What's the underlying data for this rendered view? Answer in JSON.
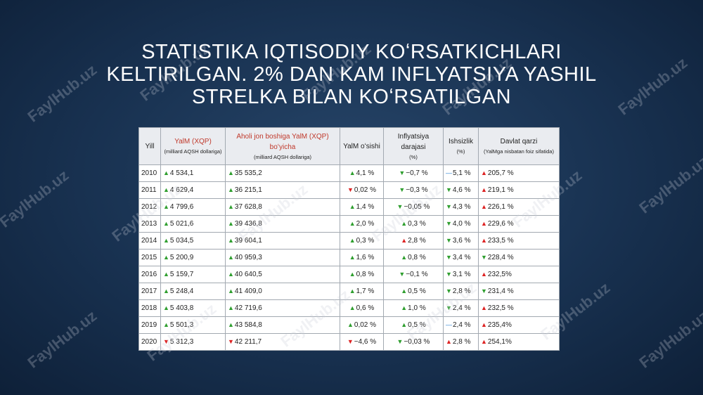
{
  "title": "STATISTIKA  IQTISODIY KOʻRSATKICHLARI KELTIRILGAN. 2% DAN KAM INFLYATSIYA YASHIL STRELKA BILAN KOʻRSATILGAN",
  "watermark": "FaylHub.uz",
  "table": {
    "header": [
      {
        "title": "Yill"
      },
      {
        "title": "YalM (XQP)",
        "note": "(milliard AQSH dollariga)",
        "color": "#c0392b"
      },
      {
        "title": "Aholi jon boshiga YalM (XQP) boʻyicha",
        "note": "(milliard AQSH dollariga)",
        "color": "#c0392b"
      },
      {
        "title": "YalM oʻsishi"
      },
      {
        "title": "Inflyatsiya darajasi",
        "note": "(%)"
      },
      {
        "title": "Ishsizlik",
        "note": "(%)"
      },
      {
        "title": "Davlat qarzi",
        "note": "(YalMga nisbatan foiz sifatida)"
      }
    ],
    "rows": [
      {
        "year": "2010",
        "cells": [
          {
            "arrow": "▲",
            "text": "4 534,1",
            "color": "#2e9e2e"
          },
          {
            "arrow": "▲",
            "text": "35 535,2",
            "color": "#2e9e2e"
          },
          {
            "arrow": "▲",
            "text": "4,1 %",
            "color": "#2e9e2e"
          },
          {
            "arrow": "▼",
            "text": "−0,7 %",
            "color": "#2e9e2e"
          },
          {
            "arrow": "—",
            "text": "5,1 %",
            "color": "#2a7fd4"
          },
          {
            "arrow": "▲",
            "text": "205,7 %",
            "color": "#d22"
          }
        ]
      },
      {
        "year": "2011",
        "cells": [
          {
            "arrow": "▲",
            "text": "4 629,4",
            "color": "#2e9e2e"
          },
          {
            "arrow": "▲",
            "text": "36 215,1",
            "color": "#2e9e2e"
          },
          {
            "arrow": "▼",
            "text": "0,02 %",
            "color": "#d22"
          },
          {
            "arrow": "▼",
            "text": "−0,3 %",
            "color": "#2e9e2e"
          },
          {
            "arrow": "▼",
            "text": "4,6 %",
            "color": "#2e9e2e"
          },
          {
            "arrow": "▲",
            "text": "219,1 %",
            "color": "#d22"
          }
        ]
      },
      {
        "year": "2012",
        "cells": [
          {
            "arrow": "▲",
            "text": "4 799,6",
            "color": "#2e9e2e"
          },
          {
            "arrow": "▲",
            "text": "37 628,8",
            "color": "#2e9e2e"
          },
          {
            "arrow": "▲",
            "text": "1,4 %",
            "color": "#2e9e2e"
          },
          {
            "arrow": "▼",
            "text": "−0,05 %",
            "color": "#2e9e2e"
          },
          {
            "arrow": "▼",
            "text": "4,3 %",
            "color": "#2e9e2e"
          },
          {
            "arrow": "▲",
            "text": "226,1 %",
            "color": "#d22"
          }
        ]
      },
      {
        "year": "2013",
        "cells": [
          {
            "arrow": "▲",
            "text": "5 021,6",
            "color": "#2e9e2e"
          },
          {
            "arrow": "▲",
            "text": "39 436,8",
            "color": "#2e9e2e"
          },
          {
            "arrow": "▲",
            "text": "2,0 %",
            "color": "#2e9e2e"
          },
          {
            "arrow": "▲",
            "text": "0,3 %",
            "color": "#2e9e2e"
          },
          {
            "arrow": "▼",
            "text": "4,0 %",
            "color": "#2e9e2e"
          },
          {
            "arrow": "▲",
            "text": "229,6 %",
            "color": "#d22"
          }
        ]
      },
      {
        "year": "2014",
        "cells": [
          {
            "arrow": "▲",
            "text": "5 034,5",
            "color": "#2e9e2e"
          },
          {
            "arrow": "▲",
            "text": "39 604,1",
            "color": "#2e9e2e"
          },
          {
            "arrow": "▲",
            "text": "0,3 %",
            "color": "#2e9e2e"
          },
          {
            "arrow": "▲",
            "text": "2,8 %",
            "color": "#d22"
          },
          {
            "arrow": "▼",
            "text": "3,6 %",
            "color": "#2e9e2e"
          },
          {
            "arrow": "▲",
            "text": "233,5 %",
            "color": "#d22"
          }
        ]
      },
      {
        "year": "2015",
        "cells": [
          {
            "arrow": "▲",
            "text": "5 200,9",
            "color": "#2e9e2e"
          },
          {
            "arrow": "▲",
            "text": "40 959,3",
            "color": "#2e9e2e"
          },
          {
            "arrow": "▲",
            "text": "1,6 %",
            "color": "#2e9e2e"
          },
          {
            "arrow": "▲",
            "text": "0,8 %",
            "color": "#2e9e2e"
          },
          {
            "arrow": "▼",
            "text": "3,4 %",
            "color": "#2e9e2e"
          },
          {
            "arrow": "▼",
            "text": "228,4 %",
            "color": "#2e9e2e"
          }
        ]
      },
      {
        "year": "2016",
        "cells": [
          {
            "arrow": "▲",
            "text": "5 159,7",
            "color": "#2e9e2e"
          },
          {
            "arrow": "▲",
            "text": "40 640,5",
            "color": "#2e9e2e"
          },
          {
            "arrow": "▲",
            "text": "0,8 %",
            "color": "#2e9e2e"
          },
          {
            "arrow": "▼",
            "text": "−0,1 %",
            "color": "#2e9e2e"
          },
          {
            "arrow": "▼",
            "text": "3,1 %",
            "color": "#2e9e2e"
          },
          {
            "arrow": "▲",
            "text": "232,5%",
            "color": "#d22"
          }
        ]
      },
      {
        "year": "2017",
        "cells": [
          {
            "arrow": "▲",
            "text": "5 248,4",
            "color": "#2e9e2e"
          },
          {
            "arrow": "▲",
            "text": "41 409,0",
            "color": "#2e9e2e"
          },
          {
            "arrow": "▲",
            "text": "1,7 %",
            "color": "#2e9e2e"
          },
          {
            "arrow": "▲",
            "text": "0,5 %",
            "color": "#2e9e2e"
          },
          {
            "arrow": "▼",
            "text": "2,8 %",
            "color": "#2e9e2e"
          },
          {
            "arrow": "▼",
            "text": "231,4 %",
            "color": "#2e9e2e"
          }
        ]
      },
      {
        "year": "2018",
        "cells": [
          {
            "arrow": "▲",
            "text": "5 403,8",
            "color": "#2e9e2e"
          },
          {
            "arrow": "▲",
            "text": "42 719,6",
            "color": "#2e9e2e"
          },
          {
            "arrow": "▲",
            "text": "0,6 %",
            "color": "#2e9e2e"
          },
          {
            "arrow": "▲",
            "text": "1,0 %",
            "color": "#2e9e2e"
          },
          {
            "arrow": "▼",
            "text": "2,4 %",
            "color": "#2e9e2e"
          },
          {
            "arrow": "▲",
            "text": "232,5 %",
            "color": "#d22"
          }
        ]
      },
      {
        "year": "2019",
        "cells": [
          {
            "arrow": "▲",
            "text": "5 501,3",
            "color": "#2e9e2e"
          },
          {
            "arrow": "▲",
            "text": "43 584,8",
            "color": "#2e9e2e"
          },
          {
            "arrow": "▲",
            "text": "0,02 %",
            "color": "#2e9e2e"
          },
          {
            "arrow": "▲",
            "text": "0,5 %",
            "color": "#2e9e2e"
          },
          {
            "arrow": "—",
            "text": "2,4 %",
            "color": "#2a7fd4"
          },
          {
            "arrow": "▲",
            "text": "235,4%",
            "color": "#d22"
          }
        ]
      },
      {
        "year": "2020",
        "cells": [
          {
            "arrow": "▼",
            "text": "5 312,3",
            "color": "#d22"
          },
          {
            "arrow": "▼",
            "text": "42 211,7",
            "color": "#d22"
          },
          {
            "arrow": "▼",
            "text": "−4,6 %",
            "color": "#d22"
          },
          {
            "arrow": "▼",
            "text": "−0,03 %",
            "color": "#2e9e2e"
          },
          {
            "arrow": "▲",
            "text": "2,8 %",
            "color": "#d22"
          },
          {
            "arrow": "▲",
            "text": "254,1%",
            "color": "#d22"
          }
        ]
      }
    ]
  }
}
